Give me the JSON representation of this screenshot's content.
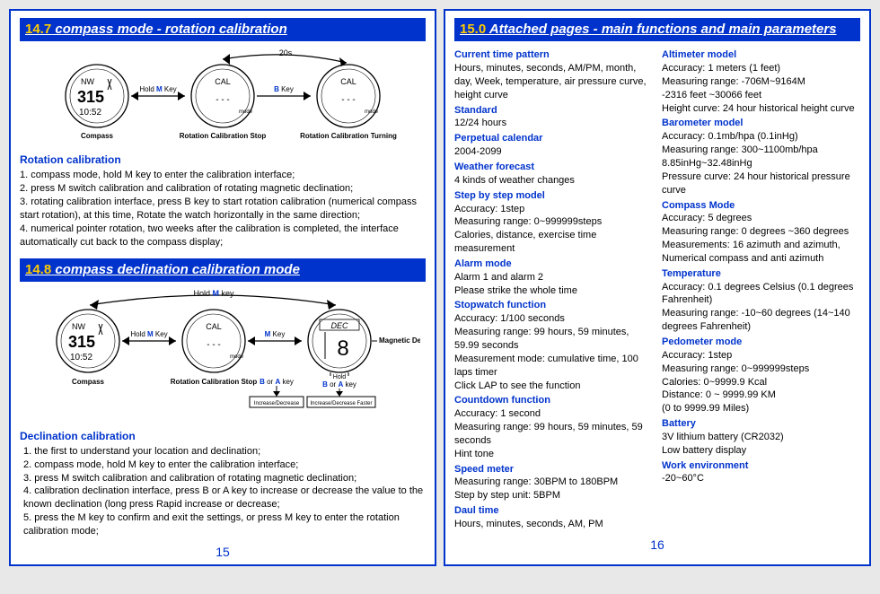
{
  "left": {
    "sec147_num": "14.7",
    "sec147_title": " compass mode - rotation calibration",
    "diag1": {
      "top_label": "20s",
      "w1_nw": "NW",
      "w1_315": "315",
      "w1_time": "10:52",
      "w2_cal": "CAL",
      "w3_cal": "CAL",
      "hold_m": "Hold ",
      "hold_m_key": "M",
      "hold_m_suffix": " Key",
      "b_key_b": "B",
      "b_key_suffix": " Key",
      "cap1": "Compass",
      "cap2": "Rotation Calibration Stop",
      "cap3": "Rotation Calibration Turning"
    },
    "rot_title": "Rotation calibration",
    "rot_steps": "1. compass mode, hold M key to enter the calibration interface;\n2. press M switch calibration and calibration of rotating magnetic declination;\n3. rotating calibration interface, press B key to start rotation calibration (numerical compass start rotation), at this time, Rotate the watch horizontally in the same direction;\n4. numerical pointer rotation, two weeks after the calibration is completed, the interface automatically cut back to the compass display;",
    "sec148_num": "14.8",
    "sec148_title": " compass declination calibration mode",
    "diag2": {
      "hold_m_top": "Hold ",
      "hold_m_top_key": "M",
      "hold_m_top_suffix": " key",
      "w1_nw": "NW",
      "w1_315": "315",
      "w1_time": "10:52",
      "w2_cal": "CAL",
      "w3_dec": "DEC",
      "w3_val": "8",
      "hold_m": "Hold ",
      "hold_m_key": "M",
      "hold_m_suffix": " Key",
      "m_key_m": "M",
      "m_key_suffix": " Key",
      "mag_dec": "Magnetic Declination",
      "cap1": "Compass",
      "cap2": "Rotation Calibration Stop",
      "ba_key_b": "B",
      "ba_key_mid": " or ",
      "ba_key_a": "A",
      "ba_key_suffix": " key",
      "box1": "Increase/Decrease",
      "box2": "Increase/Decrease Faster",
      "hold_label": "Hold"
    },
    "dec_title": "Declination calibration",
    "dec_steps": "1. the first to understand your location and declination;\n2. compass mode, hold M key to enter the calibration interface;\n3. press M switch calibration and calibration of rotating magnetic declination;\n4. calibration declination interface, press B or A key to increase or decrease the value to the known declination (long press Rapid increase or decrease;\n5. press the M key to confirm and exit the settings, or press M key to enter the rotation calibration mode;",
    "page_num": "15"
  },
  "right": {
    "sec15_num": "15.0",
    "sec15_title": " Attached pages - main functions and main parameters",
    "col1": [
      {
        "h": "Current time pattern",
        "v": "Hours, minutes, seconds, AM/PM, month, day, Week, temperature, air pressure curve, height curve"
      },
      {
        "h": "Standard",
        "v": "12/24 hours"
      },
      {
        "h": "Perpetual calendar",
        "v": "2004-2099"
      },
      {
        "h": "Weather forecast",
        "v": "4 kinds of weather changes"
      },
      {
        "h": "Step by step model",
        "v": "Accuracy: 1step\nMeasuring range: 0~999999steps\nCalories, distance, exercise time measurement"
      },
      {
        "h": "Alarm mode",
        "v": "Alarm 1 and alarm 2\nPlease strike the whole time"
      },
      {
        "h": "Stopwatch function",
        "v": "Accuracy: 1/100 seconds\nMeasuring range: 99 hours, 59 minutes, 59.99 seconds\nMeasurement mode: cumulative time, 100 laps timer\nClick LAP to see the function"
      },
      {
        "h": "Countdown function",
        "v": "Accuracy: 1 second\nMeasuring range: 99 hours, 59 minutes, 59 seconds\nHint tone"
      },
      {
        "h": "Speed meter",
        "v": "Measuring range: 30BPM to 180BPM\nStep by step unit: 5BPM"
      },
      {
        "h": "Daul time",
        "v": "Hours, minutes, seconds, AM, PM"
      }
    ],
    "col2": [
      {
        "h": "Altimeter model",
        "v": "Accuracy: 1 meters (1 feet)\nMeasuring range: -706M~9164M\n-2316 feet ~30066 feet\nHeight curve: 24 hour historical height curve"
      },
      {
        "h": "Barometer model",
        "v": "Accuracy: 0.1mb/hpa (0.1inHg)\nMeasuring range: 300~1100mb/hpa\n8.85inHg~32.48inHg\nPressure curve: 24 hour historical pressure curve"
      },
      {
        "h": "Compass Mode",
        "v": "Accuracy: 5 degrees\nMeasuring range: 0 degrees ~360 degrees\nMeasurements: 16 azimuth and azimuth,\nNumerical compass and anti azimuth"
      },
      {
        "h": "Temperature",
        "v": "Accuracy: 0.1 degrees Celsius (0.1 degrees Fahrenheit)\nMeasuring range: -10~60 degrees (14~140 degrees Fahrenheit)"
      },
      {
        "h": "Pedometer mode",
        "v": "Accuracy: 1step\nMeasuring range: 0~999999steps\nCalories: 0~9999.9 Kcal\nDistance: 0 ~ 9999.99 KM\n(0 to 9999.99 Miles)"
      },
      {
        "h": "Battery",
        "v": "3V lithium battery (CR2032)\nLow battery display"
      },
      {
        "h": "Work environment",
        "v": "-20~60°C"
      }
    ],
    "page_num": "16"
  }
}
